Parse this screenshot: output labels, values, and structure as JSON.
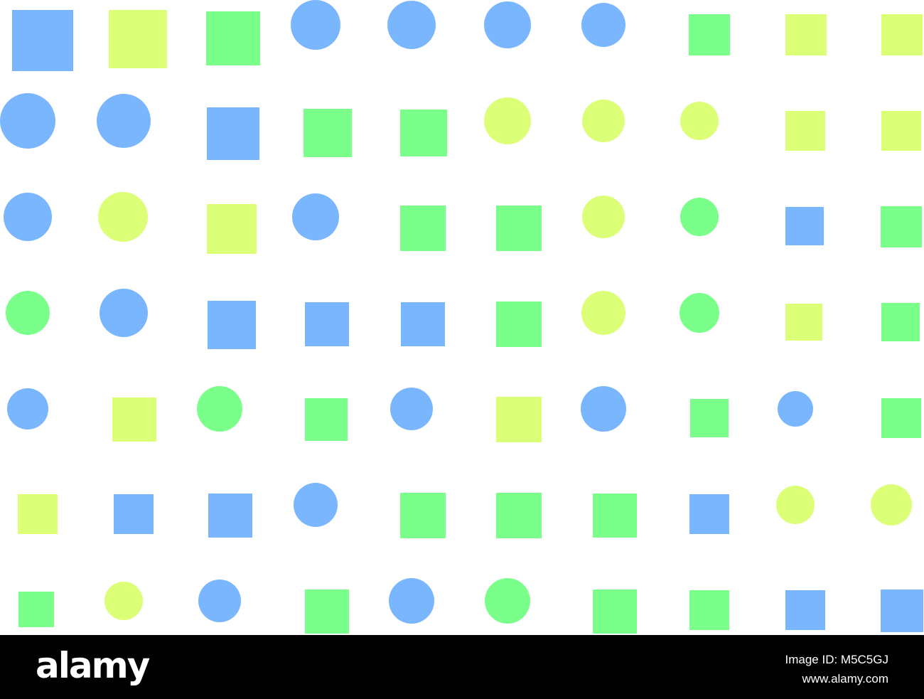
{
  "colors": {
    "blue": "#7ab6fd",
    "yellow": "#dcff78",
    "green": "#7aff8a",
    "background": "#ffffff",
    "footer": "#000000"
  },
  "pattern": {
    "rows": [
      [
        {
          "shape": "square",
          "color": "blue"
        },
        {
          "shape": "square",
          "color": "yellow"
        },
        {
          "shape": "square",
          "color": "green"
        },
        {
          "shape": "circle",
          "color": "blue"
        },
        {
          "shape": "circle",
          "color": "blue"
        },
        {
          "shape": "circle",
          "color": "blue"
        },
        {
          "shape": "circle",
          "color": "blue"
        },
        {
          "shape": "square",
          "color": "green"
        },
        {
          "shape": "square",
          "color": "yellow"
        },
        {
          "shape": "square",
          "color": "yellow"
        }
      ],
      [
        {
          "shape": "circle",
          "color": "blue"
        },
        {
          "shape": "circle",
          "color": "blue"
        },
        {
          "shape": "square",
          "color": "blue"
        },
        {
          "shape": "square",
          "color": "green"
        },
        {
          "shape": "square",
          "color": "green"
        },
        {
          "shape": "circle",
          "color": "yellow"
        },
        {
          "shape": "circle",
          "color": "yellow"
        },
        {
          "shape": "circle",
          "color": "yellow"
        },
        {
          "shape": "square",
          "color": "yellow"
        },
        {
          "shape": "square",
          "color": "yellow"
        }
      ],
      [
        {
          "shape": "circle",
          "color": "blue"
        },
        {
          "shape": "circle",
          "color": "yellow"
        },
        {
          "shape": "square",
          "color": "yellow"
        },
        {
          "shape": "circle",
          "color": "blue"
        },
        {
          "shape": "square",
          "color": "green"
        },
        {
          "shape": "square",
          "color": "green"
        },
        {
          "shape": "circle",
          "color": "yellow"
        },
        {
          "shape": "circle",
          "color": "green"
        },
        {
          "shape": "square",
          "color": "blue"
        },
        {
          "shape": "square",
          "color": "green"
        }
      ],
      [
        {
          "shape": "circle",
          "color": "green"
        },
        {
          "shape": "circle",
          "color": "blue"
        },
        {
          "shape": "square",
          "color": "blue"
        },
        {
          "shape": "square",
          "color": "blue"
        },
        {
          "shape": "square",
          "color": "blue"
        },
        {
          "shape": "square",
          "color": "green"
        },
        {
          "shape": "circle",
          "color": "yellow"
        },
        {
          "shape": "circle",
          "color": "green"
        },
        {
          "shape": "square",
          "color": "yellow"
        },
        {
          "shape": "square",
          "color": "green"
        }
      ],
      [
        {
          "shape": "circle",
          "color": "blue"
        },
        {
          "shape": "square",
          "color": "yellow"
        },
        {
          "shape": "circle",
          "color": "green"
        },
        {
          "shape": "square",
          "color": "green"
        },
        {
          "shape": "circle",
          "color": "blue"
        },
        {
          "shape": "square",
          "color": "yellow"
        },
        {
          "shape": "circle",
          "color": "blue"
        },
        {
          "shape": "square",
          "color": "green"
        },
        {
          "shape": "circle",
          "color": "blue"
        },
        {
          "shape": "square",
          "color": "green"
        }
      ],
      [
        {
          "shape": "square",
          "color": "yellow"
        },
        {
          "shape": "square",
          "color": "blue"
        },
        {
          "shape": "square",
          "color": "blue"
        },
        {
          "shape": "circle",
          "color": "blue"
        },
        {
          "shape": "square",
          "color": "green"
        },
        {
          "shape": "square",
          "color": "green"
        },
        {
          "shape": "square",
          "color": "green"
        },
        {
          "shape": "square",
          "color": "blue"
        },
        {
          "shape": "circle",
          "color": "yellow"
        },
        {
          "shape": "circle",
          "color": "yellow"
        }
      ],
      [
        {
          "shape": "square",
          "color": "green"
        },
        {
          "shape": "circle",
          "color": "yellow"
        },
        {
          "shape": "circle",
          "color": "blue"
        },
        {
          "shape": "square",
          "color": "green"
        },
        {
          "shape": "circle",
          "color": "blue"
        },
        {
          "shape": "circle",
          "color": "green"
        },
        {
          "shape": "square",
          "color": "green"
        },
        {
          "shape": "square",
          "color": "green"
        },
        {
          "shape": "square",
          "color": "blue"
        },
        {
          "shape": "square",
          "color": "blue"
        }
      ]
    ]
  },
  "footer": {
    "logo": "alamy",
    "image_id": "Image ID: M5C5GJ",
    "url": "www.alamy.com"
  }
}
